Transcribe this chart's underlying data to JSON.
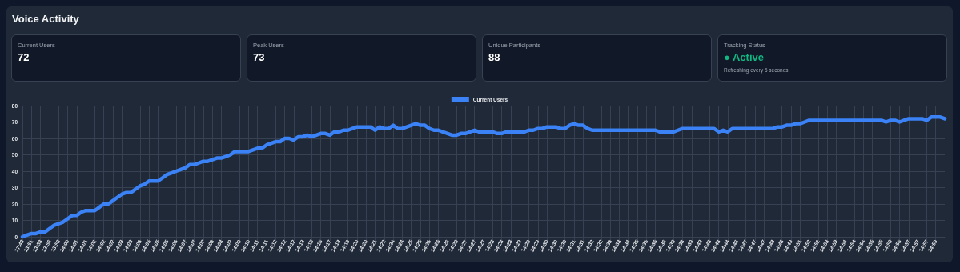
{
  "chart_data": [
    {
      "type": "other",
      "title": "Voice Activity"
    },
    {
      "type": "other",
      "title": "Current Users",
      "annotations": [
        "72"
      ],
      "color": "#ffffff"
    },
    {
      "type": "other",
      "title": "Peak Users",
      "annotations": [
        "73"
      ],
      "color": "#ffffff"
    },
    {
      "type": "other",
      "title": "Unique Participants",
      "annotations": [
        "88"
      ],
      "color": "#ffffff"
    },
    {
      "type": "other",
      "title": "Tracking Status",
      "annotations": [
        "● Active",
        "Refreshing every 5 seconds"
      ],
      "color": "#10b981"
    },
    {
      "type": "line",
      "categories": [
        "17:48",
        null,
        "13:51",
        null,
        "13:53",
        null,
        "13:56",
        null,
        "13:58",
        null,
        "14:00",
        null,
        "14:01",
        null,
        "14:01",
        null,
        "14:02",
        null,
        "14:02",
        null,
        "14:02",
        null,
        "14:03",
        null,
        "14:03",
        null,
        "14:03",
        null,
        "14:05",
        null,
        "14:05",
        null,
        "14:05",
        null,
        "14:06",
        null,
        "14:07",
        null,
        "14:07",
        null,
        "14:07",
        null,
        "14:08",
        null,
        "14:08",
        null,
        "14:09",
        null,
        "14:09",
        null,
        "14:10",
        null,
        "14:11",
        null,
        "14:11",
        null,
        "14:12",
        null,
        "14:12",
        null,
        "14:12",
        null,
        "14:13",
        null,
        "14:15",
        null,
        "14:16",
        null,
        "14:17",
        null,
        "14:18",
        null,
        "14:19",
        null,
        "14:20",
        null,
        "14:20",
        null,
        "14:21",
        null,
        "14:22",
        null,
        "14:24",
        null,
        "14:24",
        null,
        "14:25",
        null,
        "14:25",
        null,
        "14:26",
        null,
        "14:26",
        null,
        "14:26",
        null,
        "14:26",
        null,
        "14:27",
        null,
        "14:27",
        null,
        "14:27",
        null,
        "14:28",
        null,
        "14:28",
        null,
        "14:28",
        null,
        "14:29",
        null,
        "14:29",
        null,
        "14:29",
        null,
        "14:30",
        null,
        "14:30",
        null,
        "14:30",
        null,
        "14:31",
        null,
        "14:31",
        null,
        "14:32",
        null,
        "14:32",
        null,
        "14:33",
        null,
        "14:33",
        null,
        "14:34",
        null,
        "14:35",
        null,
        "14:35",
        null,
        "14:36",
        null,
        "14:36",
        null,
        "14:36",
        null,
        "14:38",
        null,
        "14:39",
        null,
        "14:42",
        null,
        "14:43",
        null,
        "14:43",
        null,
        "14:44",
        null,
        "14:46",
        null,
        "14:47",
        null,
        "14:47",
        null,
        "14:47",
        null,
        "14:48",
        null,
        "14:48",
        null,
        "14:49",
        null,
        "14:51",
        null,
        "14:52",
        null,
        "14:52",
        null,
        "14:53",
        null,
        "14:53",
        null,
        "14:54",
        null,
        "14:54",
        null,
        "14:54",
        null,
        "14:55",
        null,
        "14:55",
        null,
        "14:56",
        null,
        "14:56",
        null,
        "14:57",
        null,
        "14:57",
        null,
        "14:57",
        null,
        "14:59",
        null,
        null
      ],
      "series": [
        {
          "name": "Current Users",
          "color": "#3b82f6",
          "values": [
            0,
            1,
            2,
            2,
            3,
            3,
            5,
            7,
            8,
            9,
            11,
            13,
            13,
            15,
            16,
            16,
            16,
            18,
            20,
            20,
            22,
            24,
            26,
            27,
            27,
            29,
            31,
            32,
            34,
            34,
            34,
            36,
            38,
            39,
            40,
            41,
            42,
            44,
            44,
            45,
            46,
            46,
            47,
            48,
            48,
            49,
            50,
            52,
            52,
            52,
            52,
            53,
            54,
            54,
            56,
            57,
            58,
            58,
            60,
            60,
            59,
            61,
            61,
            62,
            61,
            62,
            63,
            63,
            62,
            64,
            64,
            65,
            65,
            66,
            67,
            67,
            67,
            67,
            65,
            67,
            66,
            66,
            68,
            66,
            66,
            67,
            68,
            69,
            68,
            68,
            66,
            65,
            65,
            64,
            63,
            62,
            62,
            63,
            63,
            64,
            65,
            64,
            64,
            64,
            64,
            63,
            63,
            64,
            64,
            64,
            64,
            64,
            65,
            65,
            66,
            66,
            67,
            67,
            67,
            66,
            66,
            68,
            69,
            68,
            68,
            66,
            65,
            65,
            65,
            65,
            65,
            65,
            65,
            65,
            65,
            65,
            65,
            65,
            65,
            65,
            65,
            64,
            64,
            64,
            64,
            65,
            66,
            66,
            66,
            66,
            66,
            66,
            66,
            66,
            64,
            65,
            64,
            66,
            66,
            66,
            66,
            66,
            66,
            66,
            66,
            66,
            66,
            67,
            67,
            68,
            68,
            69,
            69,
            70,
            71,
            71,
            71,
            71,
            71,
            71,
            71,
            71,
            71,
            71,
            71,
            71,
            71,
            71,
            71,
            71,
            71,
            70,
            71,
            71,
            70,
            71,
            72,
            72,
            72,
            72,
            71,
            73,
            73,
            73,
            72
          ]
        }
      ],
      "ylim": [
        0,
        80
      ],
      "yticks": [
        0,
        10,
        20,
        30,
        40,
        50,
        60,
        70,
        80
      ],
      "grid": true,
      "legend": "top",
      "marker": "none",
      "line_style": "solid"
    }
  ]
}
